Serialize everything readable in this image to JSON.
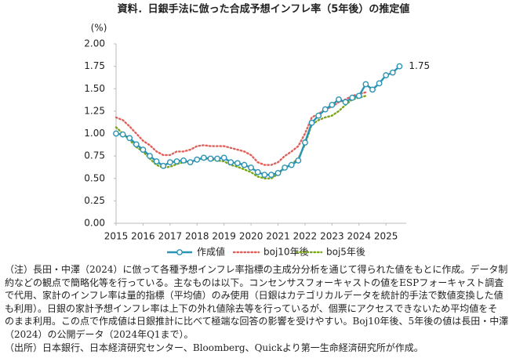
{
  "chart_data": {
    "type": "line",
    "title": "資料．日銀手法に倣った合成予想インフレ率（5年後）の推定値",
    "y_label": "(%)",
    "x": [
      2015,
      2015.25,
      2015.5,
      2015.75,
      2016,
      2016.25,
      2016.5,
      2016.75,
      2017,
      2017.25,
      2017.5,
      2017.75,
      2018,
      2018.25,
      2018.5,
      2018.75,
      2019,
      2019.25,
      2019.5,
      2019.75,
      2020,
      2020.25,
      2020.5,
      2020.75,
      2021,
      2021.25,
      2021.5,
      2021.75,
      2022,
      2022.25,
      2022.5,
      2022.75,
      2023,
      2023.25,
      2023.5,
      2023.75,
      2024,
      2024.25,
      2024.5,
      2024.75,
      2025,
      2025.25,
      2025.5
    ],
    "series": [
      {
        "name": "作成値",
        "color": "#2b93b3",
        "style": "solid",
        "markers": true,
        "values": [
          1.0,
          0.99,
          0.95,
          0.88,
          0.82,
          0.75,
          0.69,
          0.64,
          0.68,
          0.69,
          0.7,
          0.68,
          0.71,
          0.73,
          0.72,
          0.72,
          0.73,
          0.68,
          0.67,
          0.65,
          0.62,
          0.57,
          0.54,
          0.54,
          0.56,
          0.62,
          0.65,
          0.7,
          0.9,
          1.12,
          1.2,
          1.27,
          1.32,
          1.38,
          1.35,
          1.4,
          1.42,
          1.55,
          1.49,
          1.56,
          1.65,
          1.68,
          1.75
        ]
      },
      {
        "name": "boj10年後",
        "color": "#e0605a",
        "style": "dotted",
        "markers": false,
        "values": [
          1.18,
          1.15,
          1.08,
          1.0,
          0.92,
          0.87,
          0.8,
          0.76,
          0.76,
          0.8,
          0.8,
          0.82,
          0.86,
          0.87,
          0.86,
          0.86,
          0.86,
          0.84,
          0.82,
          0.8,
          0.76,
          0.68,
          0.65,
          0.65,
          0.68,
          0.75,
          0.8,
          0.86,
          1.0,
          1.18,
          1.22,
          1.27,
          1.3,
          1.35,
          1.38,
          1.42,
          1.44,
          1.46,
          null,
          null,
          null,
          null,
          null
        ]
      },
      {
        "name": "boj5年後",
        "color": "#7aa51c",
        "style": "dotted",
        "markers": false,
        "values": [
          1.07,
          1.0,
          0.93,
          0.85,
          0.8,
          0.72,
          0.65,
          0.62,
          0.63,
          0.66,
          0.68,
          0.68,
          0.71,
          0.72,
          0.71,
          0.7,
          0.69,
          0.65,
          0.63,
          0.6,
          0.57,
          0.52,
          0.5,
          0.5,
          0.55,
          0.62,
          0.66,
          0.72,
          0.88,
          1.1,
          1.15,
          1.18,
          1.2,
          1.25,
          1.32,
          1.38,
          1.4,
          1.42,
          null,
          null,
          null,
          null,
          null
        ]
      }
    ],
    "xlim": [
      2015,
      2025.75
    ],
    "xticks": [
      2015,
      2016,
      2017,
      2018,
      2019,
      2020,
      2021,
      2022,
      2023,
      2024,
      2025
    ],
    "ylim": [
      0,
      2
    ],
    "yticks": [
      {
        "value": 0,
        "label": "0.00"
      },
      {
        "value": 0.25,
        "label": "0.25"
      },
      {
        "value": 0.5,
        "label": "0.50"
      },
      {
        "value": 0.75,
        "label": "0.75"
      },
      {
        "value": 1,
        "label": "1.00"
      },
      {
        "value": 1.25,
        "label": "1.25"
      },
      {
        "value": 1.5,
        "label": "1.50"
      },
      {
        "value": 1.75,
        "label": "1.75"
      },
      {
        "value": 2,
        "label": "2.00"
      }
    ],
    "grid": false,
    "legend": "bottom"
  },
  "notes": [
    "（注）長田・中澤（2024）に倣って各種予想インフレ率指標の主成分分析を通じて得られた値をもとに作成。データ制",
    "約などの観点で簡略化等を行っている。主なものは以下。コンセンサスフォーキャストの値をESPフォーキャスト調査",
    "で代用、家計のインフレ率は量的指標（平均値）のみ使用（日銀はカテゴリカルデータを統計的手法で数値変換した値",
    "も利用）。日銀の家計予想インフレ率は上下の外れ値除去等を行っているが、個票にアクセスできないため平均値をそ",
    "のまま利用。この点で作成値は日銀推計に比べて極端な回答の影響を受けやすい。Boj10年後、5年後の値は長田・中澤",
    "（2024）の公開データ（2024年Q1まで）。",
    "（出所）日本銀行、日本経済研究センター、Bloomberg、Quickより第一生命経済研究所が作成。"
  ]
}
